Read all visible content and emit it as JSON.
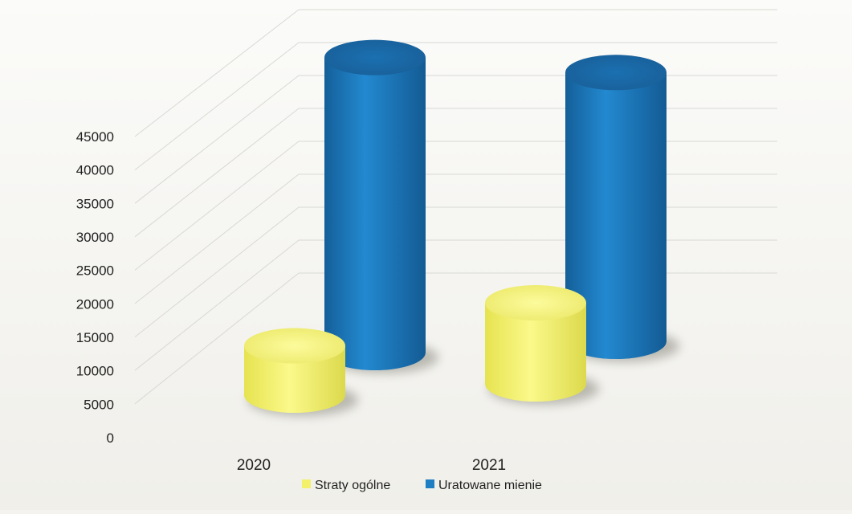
{
  "chart_data": {
    "type": "bar",
    "categories": [
      "2020",
      "2021"
    ],
    "series": [
      {
        "name": "Straty ogólne",
        "color": "#f3f06a",
        "values": [
          7000,
          11500
        ]
      },
      {
        "name": "Uratowane mienie",
        "color": "#1f7dc1",
        "values": [
          45000,
          41000
        ]
      }
    ],
    "ylim": [
      0,
      45000
    ],
    "yticks": [
      "45000",
      "40000",
      "35000",
      "30000",
      "25000",
      "20000",
      "15000",
      "10000",
      "5000",
      "0"
    ],
    "legend_position": "bottom",
    "grid": true
  }
}
